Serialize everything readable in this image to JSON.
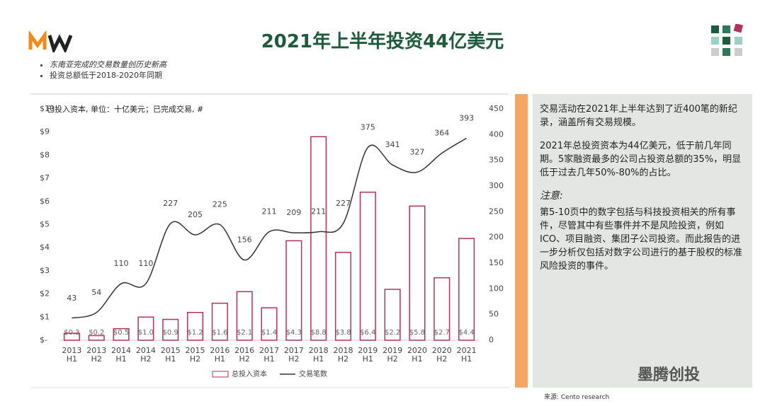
{
  "title": "2021年上半年投资44亿美元",
  "bullets": [
    "东南亚完成的交易数量创历史新高",
    "投资总额低于2018-2020年同期"
  ],
  "panel": {
    "paragraphs": [
      "交易活动在2021年上半年达到了近400笔的新纪录，涵盖所有交易规模。",
      "2021年总投资资本为44亿美元，低于前几年同期。5家融资最多的公司占投资总额的35%，明显低于过去几年50%-80%的占比。"
    ],
    "note_heading": "注意:",
    "note": "第5-10页中的数字包括与科技投资相关的所有事件，尽管其中有些事件并不是风险投资，例如ICO、项目融资、集团子公司投资。而此报告的进一步分析仅包括对数字公司进行的基于股权的标准风险投资的事件。"
  },
  "source": "来源: Cento research",
  "watermark": "墨腾创投",
  "chart_data": {
    "type": "bar_line",
    "title": "已投入资本, 单位：十亿美元；已完成交易, #",
    "categories": [
      "2013 H1",
      "2013 H2",
      "2014 H1",
      "2014 H2",
      "2015 H1",
      "2015 H2",
      "2016 H1",
      "2016 H2",
      "2017 H1",
      "2017 H2",
      "2018 H1",
      "2018 H2",
      "2019 H1",
      "2019 H2",
      "2020 H1",
      "2020 H2",
      "2021 H1"
    ],
    "series": [
      {
        "name": "总投入资本",
        "color": "#b0335a",
        "type": "bar",
        "values": [
          0.3,
          0.2,
          0.5,
          1.0,
          0.9,
          1.2,
          1.6,
          2.1,
          1.4,
          4.3,
          8.8,
          3.8,
          6.4,
          2.2,
          5.8,
          2.7,
          4.4
        ],
        "value_labels": [
          "$0.3",
          "$0.2",
          "$0.5",
          "$1.0",
          "$0.9",
          "$1.2",
          "$1.6",
          "$2.1",
          "$1.4",
          "$4.3",
          "$8.8",
          "$3.8",
          "$6.4",
          "$2.2",
          "$5.8",
          "$2.7",
          "$4.4"
        ]
      },
      {
        "name": "交易笔数",
        "color": "#333333",
        "type": "line",
        "axis": "y2",
        "values": [
          43,
          54,
          110,
          110,
          227,
          205,
          225,
          156,
          211,
          209,
          211,
          227,
          375,
          341,
          327,
          364,
          393
        ]
      }
    ],
    "ylim": [
      0,
      10
    ],
    "yticks": [
      {
        "value": 0,
        "label": "$-"
      },
      {
        "value": 1,
        "label": "$1"
      },
      {
        "value": 2,
        "label": "$2"
      },
      {
        "value": 3,
        "label": "$3"
      },
      {
        "value": 4,
        "label": "$4"
      },
      {
        "value": 5,
        "label": "$5"
      },
      {
        "value": 6,
        "label": "$6"
      },
      {
        "value": 7,
        "label": "$7"
      },
      {
        "value": 8,
        "label": "$8"
      },
      {
        "value": 9,
        "label": "$9"
      },
      {
        "value": 10,
        "label": "$10"
      }
    ],
    "y2lim": [
      0,
      450
    ],
    "y2ticks": [
      0,
      50,
      100,
      150,
      200,
      250,
      300,
      350,
      400,
      450
    ],
    "legend": "bottom"
  }
}
